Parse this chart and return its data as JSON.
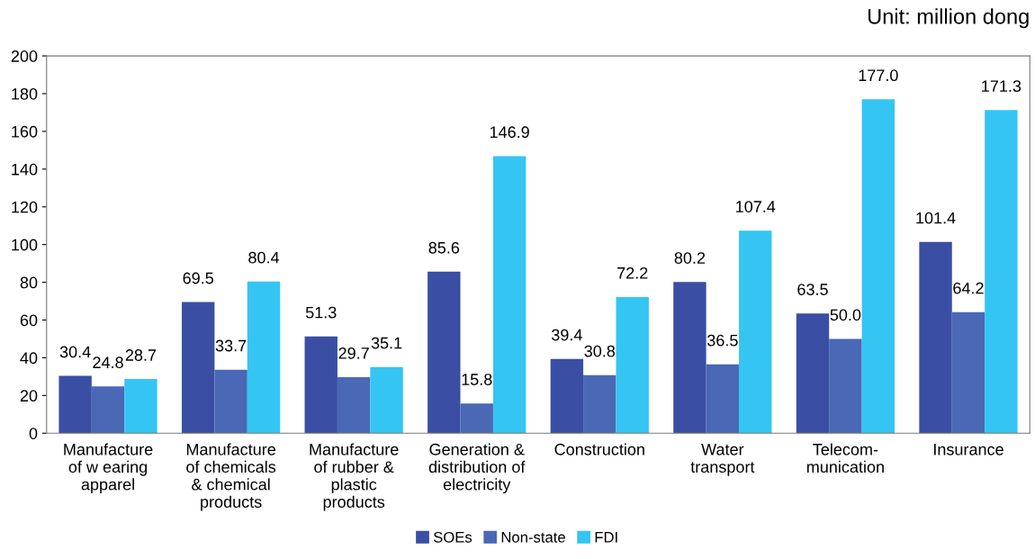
{
  "chart_data": {
    "type": "bar",
    "categories": [
      "Manufacture\nof w earing\napparel",
      "Manufacture\nof chemicals\n& chemical\nproducts",
      "Manufacture\nof rubber &\nplastic\nproducts",
      "Generation &\ndistribution of\nelectricity",
      "Construction",
      "Water\ntransport",
      "Telecom-\nmunication",
      "Insurance"
    ],
    "series": [
      {
        "name": "SOEs",
        "color": "#3a4fa3",
        "values": [
          30.4,
          69.5,
          51.3,
          85.6,
          39.4,
          80.2,
          63.5,
          101.4
        ],
        "value_labels": [
          "30.4",
          "69.5",
          "51.3",
          "85.6",
          "39.4",
          "80.2",
          "63.5",
          "101.4"
        ]
      },
      {
        "name": "Non-state",
        "color": "#4a68b5",
        "values": [
          24.8,
          33.7,
          29.7,
          15.8,
          30.8,
          36.5,
          50.0,
          64.2
        ],
        "value_labels": [
          "24.8",
          "33.7",
          "29.7",
          "15.8",
          "30.8",
          "36.5",
          "50.0",
          "64.2"
        ]
      },
      {
        "name": "FDI",
        "color": "#34c5f3",
        "values": [
          28.7,
          80.4,
          35.1,
          146.9,
          72.2,
          107.4,
          177.0,
          171.3
        ],
        "value_labels": [
          "28.7",
          "80.4",
          "35.1",
          "146.9",
          "72.2",
          "107.4",
          "177.0",
          "171.3"
        ]
      }
    ],
    "ylim": [
      0,
      200
    ],
    "yticks": [
      0,
      20,
      40,
      60,
      80,
      100,
      120,
      140,
      160,
      180,
      200
    ],
    "annotations": [
      "Unit: million dong"
    ],
    "legend": "bottom",
    "grid": false
  }
}
